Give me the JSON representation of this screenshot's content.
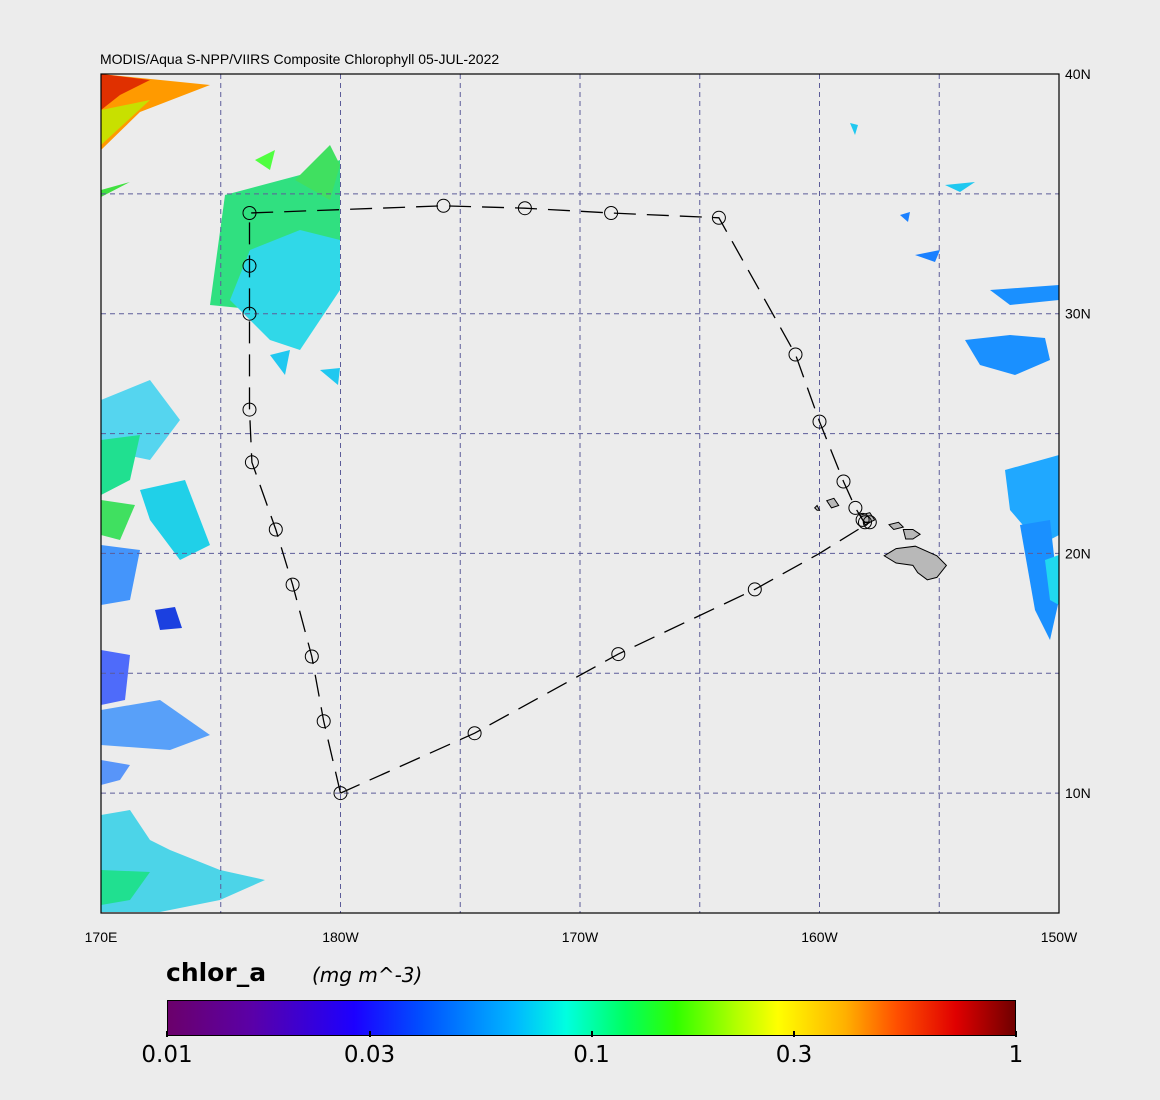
{
  "title": "MODIS/Aqua S-NPP/VIIRS Composite Chlorophyll 05-JUL-2022",
  "map": {
    "lon_range": [
      170,
      210
    ],
    "lat_range": [
      5,
      40
    ],
    "x_ticks": [
      {
        "lon": 170,
        "label": "170E"
      },
      {
        "lon": 180,
        "label": "180W"
      },
      {
        "lon": 190,
        "label": "170W"
      },
      {
        "lon": 200,
        "label": "160W"
      },
      {
        "lon": 210,
        "label": "150W"
      }
    ],
    "y_ticks": [
      {
        "lat": 40,
        "label": "40N"
      },
      {
        "lat": 30,
        "label": "30N"
      },
      {
        "lat": 20,
        "label": "20N"
      },
      {
        "lat": 10,
        "label": "10N"
      }
    ],
    "grid_lons": [
      175,
      180,
      185,
      190,
      195,
      200,
      205
    ],
    "grid_lats": [
      10,
      15,
      20,
      25,
      30,
      35
    ],
    "track": [
      [
        180.0,
        10.0
      ],
      [
        179.3,
        13.0
      ],
      [
        178.8,
        15.7
      ],
      [
        178.0,
        18.7
      ],
      [
        177.3,
        21.0
      ],
      [
        176.3,
        23.8
      ],
      [
        176.2,
        26.0
      ],
      [
        176.2,
        30.0
      ],
      [
        176.2,
        32.0
      ],
      [
        176.2,
        34.2
      ],
      [
        184.3,
        34.5
      ],
      [
        187.7,
        34.4
      ],
      [
        191.3,
        34.2
      ],
      [
        195.8,
        34.0
      ],
      [
        199.0,
        28.3
      ],
      [
        200.0,
        25.5
      ],
      [
        201.0,
        23.0
      ],
      [
        201.5,
        21.9
      ],
      [
        201.8,
        21.4
      ],
      [
        201.9,
        21.3
      ],
      [
        202.1,
        21.3
      ],
      [
        200.0,
        20.0
      ],
      [
        197.3,
        18.5
      ],
      [
        191.6,
        15.8
      ],
      [
        185.6,
        12.5
      ],
      [
        180.0,
        10.0
      ]
    ],
    "stations": [
      [
        180.0,
        10.0
      ],
      [
        185.6,
        12.5
      ],
      [
        191.6,
        15.8
      ],
      [
        197.3,
        18.5
      ],
      [
        179.3,
        13.0
      ],
      [
        178.8,
        15.7
      ],
      [
        178.0,
        18.7
      ],
      [
        177.3,
        21.0
      ],
      [
        176.3,
        23.8
      ],
      [
        176.2,
        26.0
      ],
      [
        176.2,
        30.0
      ],
      [
        176.2,
        32.0
      ],
      [
        176.2,
        34.2
      ],
      [
        184.3,
        34.5
      ],
      [
        187.7,
        34.4
      ],
      [
        191.3,
        34.2
      ],
      [
        195.8,
        34.0
      ],
      [
        199.0,
        28.3
      ],
      [
        200.0,
        25.5
      ],
      [
        201.0,
        23.0
      ],
      [
        201.5,
        21.9
      ],
      [
        201.8,
        21.4
      ],
      [
        201.9,
        21.3
      ],
      [
        202.1,
        21.3
      ]
    ],
    "islands": [
      [
        [
          202.7,
          19.9
        ],
        [
          203.2,
          20.2
        ],
        [
          204.0,
          20.3
        ],
        [
          204.9,
          19.9
        ],
        [
          205.3,
          19.5
        ],
        [
          204.9,
          19.0
        ],
        [
          204.5,
          18.9
        ],
        [
          204.1,
          19.2
        ],
        [
          203.9,
          19.5
        ],
        [
          203.2,
          19.6
        ]
      ],
      [
        [
          203.5,
          21.0
        ],
        [
          203.9,
          21.0
        ],
        [
          204.2,
          20.8
        ],
        [
          203.9,
          20.6
        ],
        [
          203.6,
          20.6
        ]
      ],
      [
        [
          202.9,
          21.2
        ],
        [
          203.3,
          21.3
        ],
        [
          203.5,
          21.1
        ],
        [
          203.1,
          21.0
        ]
      ],
      [
        [
          201.7,
          21.6
        ],
        [
          202.1,
          21.7
        ],
        [
          202.3,
          21.4
        ],
        [
          201.9,
          21.2
        ]
      ],
      [
        [
          200.3,
          22.2
        ],
        [
          200.6,
          22.3
        ],
        [
          200.8,
          22.0
        ],
        [
          200.5,
          21.9
        ]
      ],
      [
        [
          199.8,
          21.9
        ],
        [
          199.9,
          22.0
        ],
        [
          200.0,
          21.8
        ],
        [
          199.9,
          21.8
        ]
      ]
    ],
    "colors": {
      "grid": "#5c5c99",
      "island_fill": "#b8b8b8",
      "track": "#000000"
    }
  },
  "colorbar": {
    "variable": "chlor_a",
    "unit": "(mg m^-3)",
    "range": [
      0.01,
      1
    ],
    "scale": "log",
    "ticks": [
      {
        "value": 0.01,
        "label": "0.01"
      },
      {
        "value": 0.03,
        "label": "0.03"
      },
      {
        "value": 0.1,
        "label": "0.1"
      },
      {
        "value": 0.3,
        "label": "0.3"
      },
      {
        "value": 1,
        "label": "1"
      }
    ]
  }
}
